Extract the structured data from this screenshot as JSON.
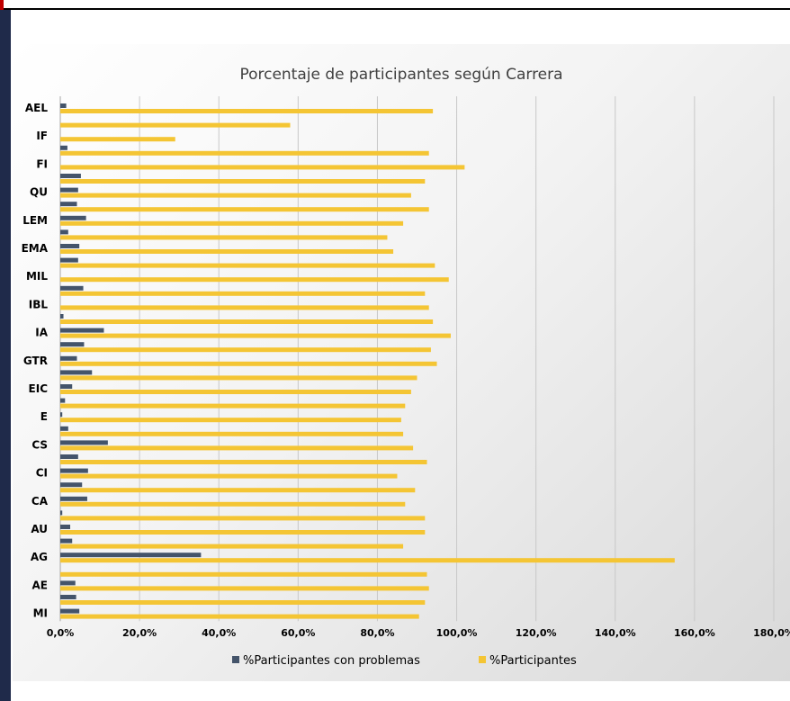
{
  "chart_data": {
    "type": "bar",
    "orientation": "horizontal",
    "title": "Porcentaje de participantes según Carrera",
    "xlim": [
      0,
      180
    ],
    "x_ticks": [
      "0,0%",
      "20,0%",
      "40,0%",
      "60,0%",
      "80,0%",
      "100,0%",
      "120,0%",
      "140,0%",
      "160,0%",
      "180,0%"
    ],
    "grid": "vertical",
    "legend_position": "bottom",
    "categories": [
      "AEL",
      "",
      "IF",
      "",
      "FI",
      "",
      "QU",
      "",
      "LEM",
      "",
      "EMA",
      "",
      "MIL",
      "",
      "IBL",
      "",
      "IA",
      "",
      "GTR",
      "",
      "EIC",
      "",
      "E",
      "",
      "CS",
      "",
      "CI",
      "",
      "CA",
      "",
      "AU",
      "",
      "AG",
      "",
      "AE",
      "",
      "MI"
    ],
    "series": [
      {
        "name": "%Participantes con problemas",
        "color": "#44546a",
        "values": [
          1.5,
          0,
          0,
          1.8,
          0,
          5.2,
          4.5,
          4.2,
          6.5,
          2.0,
          4.8,
          4.5,
          0,
          5.8,
          0,
          0.8,
          11.0,
          6.0,
          4.2,
          8.0,
          3.0,
          1.2,
          0.5,
          2.0,
          12.0,
          4.5,
          7.0,
          5.5,
          6.8,
          0.5,
          2.5,
          3.0,
          35.5,
          0,
          3.8,
          4.0,
          4.8
        ]
      },
      {
        "name": "%Participantes",
        "color": "#f4c534",
        "values": [
          94,
          58,
          29,
          93,
          102,
          92,
          88.5,
          93,
          86.5,
          82.5,
          84,
          94.5,
          98,
          92,
          93,
          94,
          98.5,
          93.5,
          95,
          90,
          88.5,
          87,
          86,
          86.5,
          89,
          92.5,
          85,
          89.5,
          87,
          92,
          92,
          86.5,
          155,
          92.5,
          93,
          92,
          90.5
        ]
      }
    ]
  }
}
